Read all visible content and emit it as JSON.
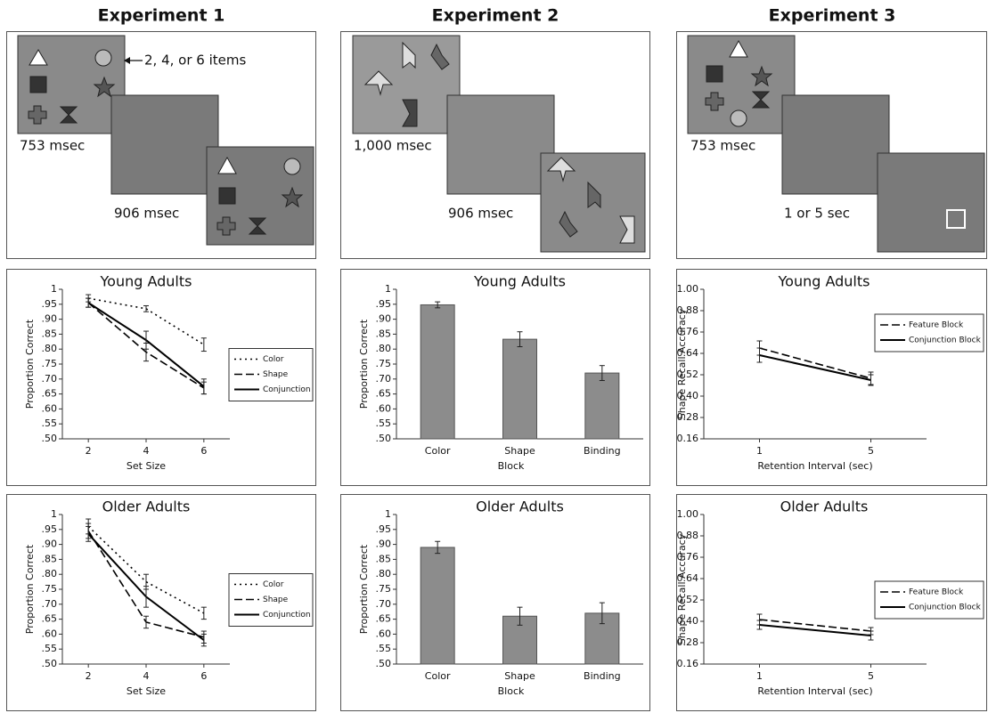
{
  "experiments": [
    {
      "title": "Experiment 1",
      "labels": [
        "2, 4, or 6 items",
        "753 msec",
        "906 msec"
      ]
    },
    {
      "title": "Experiment 2",
      "labels": [
        "1,000 msec",
        "906 msec"
      ]
    },
    {
      "title": "Experiment 3",
      "labels": [
        "753 msec",
        "1 or 5 sec"
      ]
    }
  ],
  "chart_data": [
    {
      "type": "line",
      "title": "Young Adults",
      "x_label": "Set Size",
      "y_label": "Proportion Correct",
      "x": [
        2,
        4,
        6
      ],
      "xlim": [
        1.1,
        6.9
      ],
      "xticks": [
        2,
        4,
        6
      ],
      "ylim": [
        0.5,
        1
      ],
      "yticks": [
        1,
        {
          "value": 0.95,
          "label": ".95"
        },
        {
          "value": 0.9,
          "label": ".90"
        },
        {
          "value": 0.85,
          "label": ".85"
        },
        {
          "value": 0.8,
          "label": ".80"
        },
        {
          "value": 0.75,
          "label": ".75"
        },
        {
          "value": 0.7,
          "label": ".70"
        },
        {
          "value": 0.65,
          "label": ".65"
        },
        {
          "value": 0.6,
          "label": ".60"
        },
        {
          "value": 0.55,
          "label": ".55"
        },
        {
          "value": 0.5,
          "label": ".50"
        }
      ],
      "legend": "center right",
      "series": [
        {
          "name": "Color",
          "color": "#000000",
          "dash": "dotted",
          "values": [
            0.97,
            0.935,
            0.815
          ],
          "errors": [
            0.012,
            0.01,
            0.022
          ]
        },
        {
          "name": "Shape",
          "color": "#000000",
          "dash": "dashed",
          "values": [
            0.955,
            0.79,
            0.67
          ],
          "errors": [
            0.015,
            0.03,
            0.02
          ]
        },
        {
          "name": "Conjunction",
          "color": "#000000",
          "dash": "solid",
          "values": [
            0.955,
            0.83,
            0.675
          ],
          "errors": [
            0.015,
            0.03,
            0.025
          ]
        }
      ]
    },
    {
      "type": "bar",
      "title": "Young Adults",
      "x_label": "Block",
      "y_label": "Proportion Correct",
      "categories": [
        "Color",
        "Shape",
        "Binding"
      ],
      "values": [
        0.948,
        0.833,
        0.72
      ],
      "errors": [
        0.01,
        0.025,
        0.025
      ],
      "color": "#8c8c8c",
      "ylim": [
        0.5,
        1
      ],
      "yticks": [
        1,
        {
          "value": 0.95,
          "label": ".95"
        },
        {
          "value": 0.9,
          "label": ".90"
        },
        {
          "value": 0.85,
          "label": ".85"
        },
        {
          "value": 0.8,
          "label": ".80"
        },
        {
          "value": 0.75,
          "label": ".75"
        },
        {
          "value": 0.7,
          "label": ".70"
        },
        {
          "value": 0.65,
          "label": ".65"
        },
        {
          "value": 0.6,
          "label": ".60"
        },
        {
          "value": 0.55,
          "label": ".55"
        },
        {
          "value": 0.5,
          "label": ".50"
        }
      ]
    },
    {
      "type": "line",
      "title": "Young Adults",
      "x_label": "Retention Interval (sec)",
      "y_label": "Shape Recall Accuracy",
      "x": [
        1,
        5
      ],
      "xlim": [
        -1,
        7
      ],
      "xticks": [
        1,
        5
      ],
      "ylim": [
        0.16,
        1
      ],
      "yticks": [
        {
          "value": 1,
          "label": "1.00"
        },
        0.88,
        0.76,
        0.64,
        0.52,
        {
          "value": 0.4,
          "label": "0.40"
        },
        0.28,
        0.16
      ],
      "legend": "upper right",
      "series": [
        {
          "name": "Feature Block",
          "color": "#000000",
          "dash": "dashed",
          "values": [
            0.67,
            0.5
          ],
          "errors": [
            0.04,
            0.035
          ]
        },
        {
          "name": "Conjunction Block",
          "color": "#000000",
          "dash": "solid",
          "values": [
            0.63,
            0.49
          ],
          "errors": [
            0.04,
            0.03
          ]
        }
      ]
    },
    {
      "type": "line",
      "title": "Older Adults",
      "x_label": "Set Size",
      "y_label": "Proportion Correct",
      "x": [
        2,
        4,
        6
      ],
      "xlim": [
        1.1,
        6.9
      ],
      "xticks": [
        2,
        4,
        6
      ],
      "ylim": [
        0.5,
        1
      ],
      "yticks": [
        1,
        {
          "value": 0.95,
          "label": ".95"
        },
        {
          "value": 0.9,
          "label": ".90"
        },
        {
          "value": 0.85,
          "label": ".85"
        },
        {
          "value": 0.8,
          "label": ".80"
        },
        {
          "value": 0.75,
          "label": ".75"
        },
        {
          "value": 0.7,
          "label": ".70"
        },
        {
          "value": 0.65,
          "label": ".65"
        },
        {
          "value": 0.6,
          "label": ".60"
        },
        {
          "value": 0.55,
          "label": ".55"
        },
        {
          "value": 0.5,
          "label": ".50"
        }
      ],
      "legend": "center right",
      "series": [
        {
          "name": "Color",
          "color": "#000000",
          "dash": "dotted",
          "values": [
            0.96,
            0.775,
            0.67
          ],
          "errors": [
            0.025,
            0.025,
            0.02
          ]
        },
        {
          "name": "Shape",
          "color": "#000000",
          "dash": "dashed",
          "values": [
            0.945,
            0.64,
            0.59
          ],
          "errors": [
            0.025,
            0.02,
            0.02
          ]
        },
        {
          "name": "Conjunction",
          "color": "#000000",
          "dash": "solid",
          "values": [
            0.935,
            0.725,
            0.58
          ],
          "errors": [
            0.025,
            0.035,
            0.02
          ]
        }
      ]
    },
    {
      "type": "bar",
      "title": "Older Adults",
      "x_label": "Block",
      "y_label": "Proportion Correct",
      "categories": [
        "Color",
        "Shape",
        "Binding"
      ],
      "values": [
        0.89,
        0.66,
        0.67
      ],
      "errors": [
        0.02,
        0.03,
        0.035
      ],
      "color": "#8c8c8c",
      "ylim": [
        0.5,
        1
      ],
      "yticks": [
        1,
        {
          "value": 0.95,
          "label": ".95"
        },
        {
          "value": 0.9,
          "label": ".90"
        },
        {
          "value": 0.85,
          "label": ".85"
        },
        {
          "value": 0.8,
          "label": ".80"
        },
        {
          "value": 0.75,
          "label": ".75"
        },
        {
          "value": 0.7,
          "label": ".70"
        },
        {
          "value": 0.65,
          "label": ".65"
        },
        {
          "value": 0.6,
          "label": ".60"
        },
        {
          "value": 0.55,
          "label": ".55"
        },
        {
          "value": 0.5,
          "label": ".50"
        }
      ]
    },
    {
      "type": "line",
      "title": "Older Adults",
      "x_label": "Retention Interval (sec)",
      "y_label": "Shape Recall Accuracy",
      "x": [
        1,
        5
      ],
      "xlim": [
        -1,
        7
      ],
      "xticks": [
        1,
        5
      ],
      "ylim": [
        0.16,
        1
      ],
      "yticks": [
        {
          "value": 1,
          "label": "1.00"
        },
        0.88,
        0.76,
        0.64,
        0.52,
        {
          "value": 0.4,
          "label": "0.40"
        },
        0.28,
        0.16
      ],
      "legend": "center right",
      "series": [
        {
          "name": "Feature Block",
          "color": "#000000",
          "dash": "dashed",
          "values": [
            0.41,
            0.345
          ],
          "errors": [
            0.03,
            0.02
          ]
        },
        {
          "name": "Conjunction Block",
          "color": "#000000",
          "dash": "solid",
          "values": [
            0.38,
            0.32
          ],
          "errors": [
            0.025,
            0.025
          ]
        }
      ]
    }
  ]
}
